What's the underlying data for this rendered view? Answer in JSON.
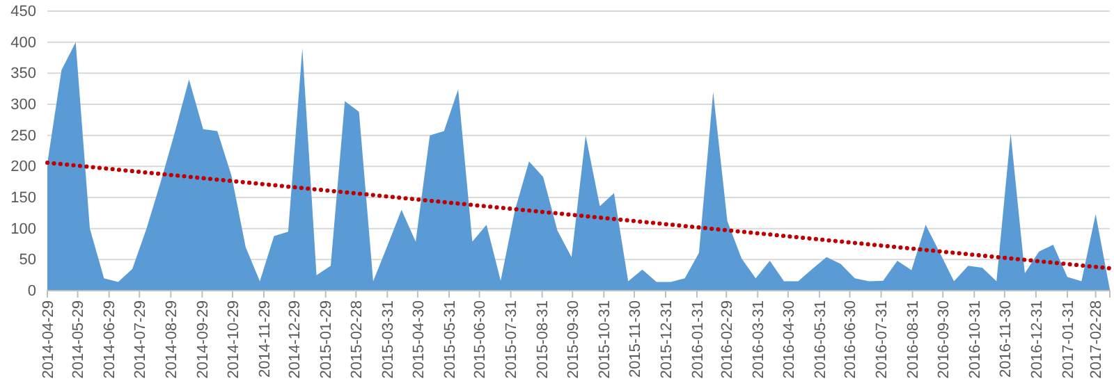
{
  "chart_data": {
    "type": "area",
    "ylim": [
      0,
      450
    ],
    "yticks": [
      0,
      50,
      100,
      150,
      200,
      250,
      300,
      350,
      400,
      450
    ],
    "grid": "y",
    "xlim": [
      "2014-04-29",
      "2017-03-14"
    ],
    "xticks": [
      "2014-04-29",
      "2014-05-29",
      "2014-06-29",
      "2014-07-29",
      "2014-08-29",
      "2014-09-29",
      "2014-10-29",
      "2014-11-29",
      "2014-12-29",
      "2015-01-29",
      "2015-02-28",
      "2015-03-31",
      "2015-04-30",
      "2015-05-31",
      "2015-06-30",
      "2015-07-31",
      "2015-08-31",
      "2015-09-30",
      "2015-10-31",
      "2015-11-30",
      "2015-12-31",
      "2016-01-31",
      "2016-02-29",
      "2016-03-31",
      "2016-04-30",
      "2016-05-31",
      "2016-06-30",
      "2016-07-31",
      "2016-08-31",
      "2016-09-30",
      "2016-10-31",
      "2016-11-30",
      "2016-12-31",
      "2017-01-31",
      "2017-02-28"
    ],
    "series": [
      {
        "color": "#5b9bd5",
        "x": [
          "2014-04-29",
          "2014-05-13",
          "2014-05-27",
          "2014-06-10",
          "2014-06-24",
          "2014-07-08",
          "2014-07-22",
          "2014-08-05",
          "2014-08-19",
          "2014-09-02",
          "2014-09-16",
          "2014-09-30",
          "2014-10-14",
          "2014-10-28",
          "2014-11-11",
          "2014-11-25",
          "2014-12-09",
          "2014-12-23",
          "2015-01-06",
          "2015-01-20",
          "2015-02-03",
          "2015-02-17",
          "2015-03-03",
          "2015-03-17",
          "2015-03-31",
          "2015-04-14",
          "2015-04-28",
          "2015-05-12",
          "2015-05-26",
          "2015-06-09",
          "2015-06-23",
          "2015-07-07",
          "2015-07-21",
          "2015-08-04",
          "2015-08-18",
          "2015-09-01",
          "2015-09-15",
          "2015-09-29",
          "2015-10-13",
          "2015-10-27",
          "2015-11-10",
          "2015-11-24",
          "2015-12-08",
          "2015-12-22",
          "2016-01-05",
          "2016-01-19",
          "2016-02-02",
          "2016-02-16",
          "2016-03-01",
          "2016-03-15",
          "2016-03-29",
          "2016-04-12",
          "2016-04-26",
          "2016-05-10",
          "2016-05-24",
          "2016-06-07",
          "2016-06-21",
          "2016-07-05",
          "2016-07-19",
          "2016-08-02",
          "2016-08-16",
          "2016-08-30",
          "2016-09-13",
          "2016-09-27",
          "2016-10-11",
          "2016-10-25",
          "2016-11-08",
          "2016-11-22",
          "2016-12-06",
          "2016-12-20",
          "2017-01-03",
          "2017-01-17",
          "2017-01-31",
          "2017-02-14",
          "2017-02-28",
          "2017-03-14"
        ],
        "values": [
          205,
          355,
          400,
          100,
          20,
          14,
          35,
          100,
          175,
          255,
          340,
          260,
          257,
          185,
          70,
          15,
          88,
          95,
          390,
          25,
          40,
          305,
          288,
          15,
          72,
          130,
          79,
          250,
          257,
          324,
          79,
          106,
          16,
          129,
          208,
          183,
          97,
          54,
          250,
          136,
          157,
          15,
          34,
          14,
          14,
          20,
          61,
          320,
          112,
          52,
          20,
          48,
          15,
          15,
          35,
          54,
          43,
          20,
          15,
          16,
          48,
          33,
          106,
          61,
          15,
          40,
          37,
          15,
          253,
          28,
          63,
          74,
          22,
          15,
          123,
          2
        ]
      },
      {
        "type": "line",
        "color": "#c00000",
        "line_style": "dotted",
        "x": [
          "2014-04-29",
          "2017-03-14"
        ],
        "values": [
          206,
          36
        ]
      }
    ]
  }
}
